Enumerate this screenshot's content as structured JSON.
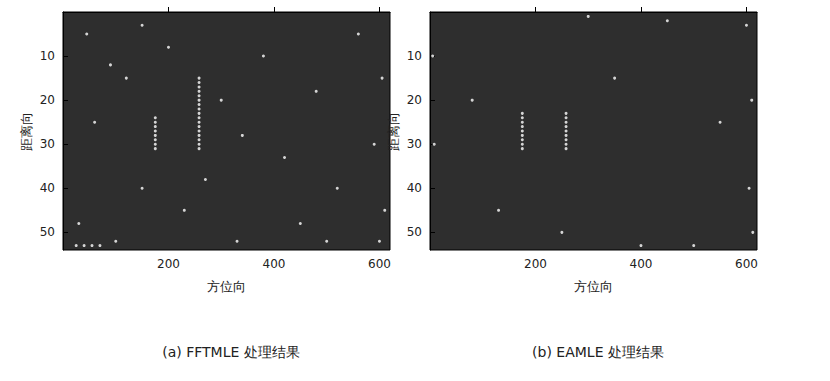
{
  "chart_data": [
    {
      "type": "scatter",
      "title": "(a) FFTMLE 处理结果",
      "xlabel": "方位向",
      "ylabel": "距离向",
      "xlim": [
        0,
        620
      ],
      "ylim": [
        0,
        54
      ],
      "xticks": [
        200,
        400,
        600
      ],
      "yticks": [
        10,
        20,
        30,
        40,
        50
      ],
      "grid": false,
      "color": "#ffffff",
      "marker": "circle",
      "x": [
        175,
        175,
        175,
        175,
        175,
        175,
        175,
        175,
        258,
        258,
        258,
        258,
        258,
        258,
        258,
        258,
        258,
        258,
        258,
        258,
        258,
        258,
        258,
        258,
        258,
        30,
        45,
        90,
        120,
        150,
        200,
        230,
        300,
        330,
        380,
        420,
        450,
        480,
        520,
        560,
        590,
        605,
        610,
        100,
        60,
        270,
        340,
        500,
        150,
        600,
        25,
        40,
        55,
        70
      ],
      "values": [
        24,
        25,
        26,
        27,
        28,
        29,
        30,
        31,
        15,
        16,
        17,
        18,
        19,
        20,
        21,
        22,
        23,
        24,
        25,
        26,
        27,
        28,
        29,
        30,
        31,
        48,
        5,
        12,
        15,
        40,
        8,
        45,
        20,
        52,
        10,
        33,
        48,
        18,
        40,
        5,
        30,
        15,
        45,
        52,
        25,
        38,
        28,
        52,
        3,
        52,
        53,
        53,
        53,
        53
      ]
    },
    {
      "type": "scatter",
      "title": "(b) EAMLE 处理结果",
      "xlabel": "方位向",
      "ylabel": "距离向",
      "xlim": [
        0,
        620
      ],
      "ylim": [
        0,
        54
      ],
      "xticks": [
        200,
        400,
        600
      ],
      "yticks": [
        10,
        20,
        30,
        40,
        50
      ],
      "grid": false,
      "color": "#ffffff",
      "marker": "circle",
      "x": [
        175,
        175,
        175,
        175,
        175,
        175,
        175,
        175,
        175,
        258,
        258,
        258,
        258,
        258,
        258,
        258,
        258,
        258,
        600,
        610,
        605,
        612,
        5,
        8,
        300,
        400,
        500,
        450,
        130,
        350,
        550,
        250,
        80
      ],
      "values": [
        23,
        24,
        25,
        26,
        27,
        28,
        29,
        30,
        31,
        23,
        24,
        25,
        26,
        27,
        28,
        29,
        30,
        31,
        3,
        20,
        40,
        50,
        10,
        30,
        1,
        53,
        53,
        2,
        45,
        15,
        25,
        50,
        20
      ]
    }
  ]
}
